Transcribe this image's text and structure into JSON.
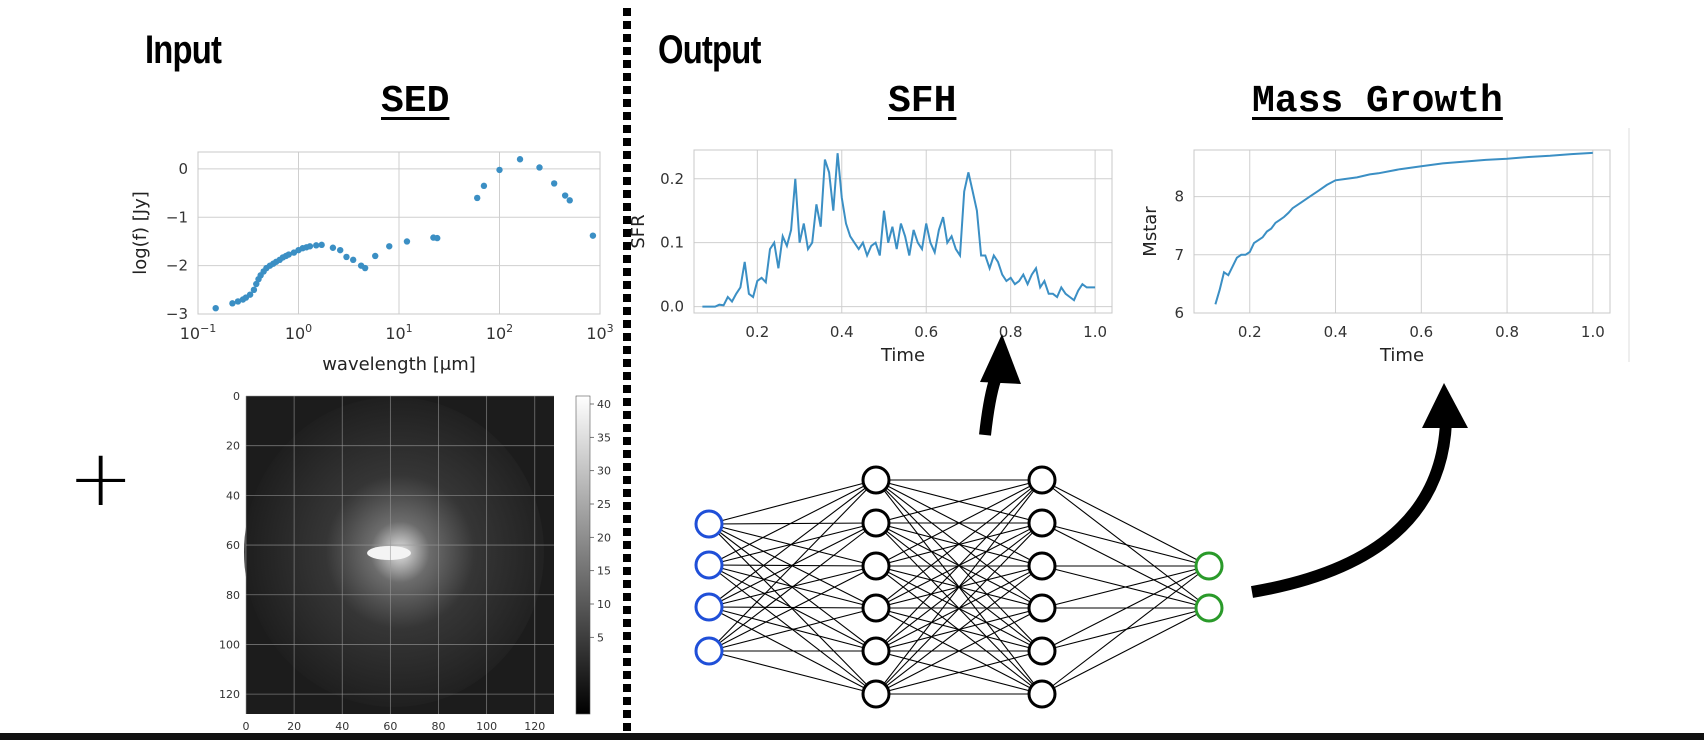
{
  "sections": {
    "input": "Input",
    "output": "Output"
  },
  "plus_symbol": "+",
  "colors": {
    "line": "#3b8fc4",
    "grid": "#cfcfcf",
    "input_node": "#1f4fd8",
    "output_node": "#2a9a2a",
    "node": "#000000"
  },
  "sed": {
    "title": "SED",
    "chart_data": {
      "type": "scatter",
      "xlabel": "wavelength [μm]",
      "ylabel": "log(f) [Jy]",
      "xscale": "log",
      "xlim": [
        0.1,
        1000
      ],
      "ylim": [
        -3,
        0.35
      ],
      "xticks": [
        {
          "v": 0.1,
          "b": "10",
          "e": "−1"
        },
        {
          "v": 1,
          "b": "10",
          "e": "0"
        },
        {
          "v": 10,
          "b": "10",
          "e": "1"
        },
        {
          "v": 100,
          "b": "10",
          "e": "2"
        },
        {
          "v": 1000,
          "b": "10",
          "e": "3"
        }
      ],
      "yticks": [
        {
          "v": 0,
          "l": "0"
        },
        {
          "v": -1,
          "l": "−1"
        },
        {
          "v": -2,
          "l": "−2"
        },
        {
          "v": -3,
          "l": "−3"
        }
      ],
      "grid": true,
      "points": [
        [
          0.15,
          -2.88
        ],
        [
          0.22,
          -2.78
        ],
        [
          0.25,
          -2.74
        ],
        [
          0.28,
          -2.7
        ],
        [
          0.3,
          -2.66
        ],
        [
          0.33,
          -2.6
        ],
        [
          0.36,
          -2.5
        ],
        [
          0.38,
          -2.38
        ],
        [
          0.4,
          -2.28
        ],
        [
          0.42,
          -2.2
        ],
        [
          0.45,
          -2.12
        ],
        [
          0.48,
          -2.05
        ],
        [
          0.52,
          -2.0
        ],
        [
          0.56,
          -1.96
        ],
        [
          0.6,
          -1.92
        ],
        [
          0.65,
          -1.88
        ],
        [
          0.7,
          -1.83
        ],
        [
          0.75,
          -1.8
        ],
        [
          0.8,
          -1.77
        ],
        [
          0.9,
          -1.73
        ],
        [
          1.0,
          -1.68
        ],
        [
          1.1,
          -1.64
        ],
        [
          1.2,
          -1.62
        ],
        [
          1.3,
          -1.6
        ],
        [
          1.5,
          -1.58
        ],
        [
          1.7,
          -1.57
        ],
        [
          2.2,
          -1.63
        ],
        [
          2.6,
          -1.68
        ],
        [
          3.0,
          -1.82
        ],
        [
          3.5,
          -1.88
        ],
        [
          4.2,
          -2.0
        ],
        [
          4.6,
          -2.05
        ],
        [
          5.8,
          -1.8
        ],
        [
          8.0,
          -1.6
        ],
        [
          12.0,
          -1.5
        ],
        [
          22.0,
          -1.42
        ],
        [
          24.0,
          -1.43
        ],
        [
          60.0,
          -0.6
        ],
        [
          70.0,
          -0.35
        ],
        [
          100.0,
          -0.02
        ],
        [
          160.0,
          0.2
        ],
        [
          250.0,
          0.03
        ],
        [
          350.0,
          -0.3
        ],
        [
          450.0,
          -0.55
        ],
        [
          500.0,
          -0.65
        ],
        [
          850.0,
          -1.38
        ]
      ]
    }
  },
  "sfh": {
    "title": "SFH",
    "chart_data": {
      "type": "line",
      "xlabel": "Time",
      "ylabel": "SFR",
      "xlim": [
        0.05,
        1.04
      ],
      "ylim": [
        -0.01,
        0.245
      ],
      "xticks": [
        {
          "v": 0.2,
          "l": "0.2"
        },
        {
          "v": 0.4,
          "l": "0.4"
        },
        {
          "v": 0.6,
          "l": "0.6"
        },
        {
          "v": 0.8,
          "l": "0.8"
        },
        {
          "v": 1.0,
          "l": "1.0"
        }
      ],
      "yticks": [
        {
          "v": 0.0,
          "l": "0.0"
        },
        {
          "v": 0.1,
          "l": "0.1"
        },
        {
          "v": 0.2,
          "l": "0.2"
        }
      ],
      "grid": true,
      "x": [
        0.07,
        0.09,
        0.1,
        0.11,
        0.12,
        0.13,
        0.14,
        0.15,
        0.16,
        0.17,
        0.18,
        0.19,
        0.2,
        0.21,
        0.22,
        0.23,
        0.24,
        0.25,
        0.26,
        0.27,
        0.28,
        0.29,
        0.3,
        0.31,
        0.32,
        0.33,
        0.34,
        0.35,
        0.36,
        0.37,
        0.38,
        0.39,
        0.4,
        0.41,
        0.42,
        0.43,
        0.44,
        0.45,
        0.46,
        0.47,
        0.48,
        0.49,
        0.5,
        0.51,
        0.52,
        0.53,
        0.54,
        0.55,
        0.56,
        0.57,
        0.58,
        0.59,
        0.6,
        0.61,
        0.62,
        0.63,
        0.64,
        0.65,
        0.66,
        0.67,
        0.68,
        0.69,
        0.7,
        0.71,
        0.72,
        0.73,
        0.74,
        0.75,
        0.76,
        0.77,
        0.78,
        0.79,
        0.8,
        0.81,
        0.82,
        0.83,
        0.84,
        0.85,
        0.86,
        0.87,
        0.88,
        0.89,
        0.9,
        0.91,
        0.92,
        0.93,
        0.94,
        0.95,
        0.96,
        0.97,
        0.98,
        0.99,
        1.0
      ],
      "y": [
        0.0,
        0.0,
        0.0,
        0.003,
        0.002,
        0.015,
        0.008,
        0.02,
        0.03,
        0.07,
        0.02,
        0.015,
        0.04,
        0.045,
        0.038,
        0.09,
        0.1,
        0.06,
        0.11,
        0.095,
        0.12,
        0.2,
        0.1,
        0.13,
        0.09,
        0.1,
        0.16,
        0.125,
        0.23,
        0.21,
        0.15,
        0.24,
        0.17,
        0.13,
        0.11,
        0.1,
        0.09,
        0.1,
        0.08,
        0.095,
        0.1,
        0.08,
        0.15,
        0.1,
        0.125,
        0.09,
        0.13,
        0.11,
        0.08,
        0.12,
        0.1,
        0.09,
        0.13,
        0.1,
        0.085,
        0.12,
        0.14,
        0.1,
        0.11,
        0.09,
        0.08,
        0.18,
        0.21,
        0.18,
        0.15,
        0.08,
        0.08,
        0.06,
        0.08,
        0.07,
        0.05,
        0.04,
        0.045,
        0.035,
        0.04,
        0.05,
        0.035,
        0.05,
        0.06,
        0.03,
        0.04,
        0.02,
        0.02,
        0.015,
        0.03,
        0.02,
        0.015,
        0.01,
        0.025,
        0.035,
        0.03,
        0.03,
        0.03
      ]
    }
  },
  "mass": {
    "title": "Mass Growth",
    "chart_data": {
      "type": "line",
      "xlabel": "Time",
      "ylabel": "Mstar",
      "xlim": [
        0.07,
        1.04
      ],
      "ylim": [
        6.0,
        8.8
      ],
      "xticks": [
        {
          "v": 0.2,
          "l": "0.2"
        },
        {
          "v": 0.4,
          "l": "0.4"
        },
        {
          "v": 0.6,
          "l": "0.6"
        },
        {
          "v": 0.8,
          "l": "0.8"
        },
        {
          "v": 1.0,
          "l": "1.0"
        }
      ],
      "yticks": [
        {
          "v": 6,
          "l": "6"
        },
        {
          "v": 7,
          "l": "7"
        },
        {
          "v": 8,
          "l": "8"
        }
      ],
      "grid": true,
      "x": [
        0.12,
        0.13,
        0.14,
        0.15,
        0.16,
        0.17,
        0.18,
        0.19,
        0.2,
        0.21,
        0.22,
        0.23,
        0.24,
        0.25,
        0.26,
        0.27,
        0.28,
        0.29,
        0.3,
        0.32,
        0.34,
        0.36,
        0.38,
        0.4,
        0.42,
        0.45,
        0.48,
        0.5,
        0.55,
        0.6,
        0.65,
        0.7,
        0.75,
        0.8,
        0.85,
        0.9,
        0.95,
        1.0
      ],
      "y": [
        6.15,
        6.4,
        6.7,
        6.65,
        6.8,
        6.95,
        7.0,
        7.0,
        7.05,
        7.2,
        7.25,
        7.3,
        7.4,
        7.45,
        7.55,
        7.6,
        7.65,
        7.72,
        7.8,
        7.9,
        8.0,
        8.1,
        8.2,
        8.28,
        8.3,
        8.33,
        8.38,
        8.4,
        8.47,
        8.52,
        8.57,
        8.6,
        8.63,
        8.65,
        8.68,
        8.7,
        8.73,
        8.75
      ]
    }
  },
  "image": {
    "xlim": [
      0,
      128
    ],
    "ylim": [
      0,
      128
    ],
    "xticks": [
      "0",
      "20",
      "40",
      "60",
      "80",
      "100",
      "120"
    ],
    "yticks": [
      "0",
      "20",
      "40",
      "60",
      "80",
      "100",
      "120"
    ],
    "colorbar_ticks": [
      "40",
      "35",
      "30",
      "25",
      "20",
      "15",
      "10",
      "5"
    ]
  },
  "network": {
    "layers": [
      4,
      6,
      6,
      2
    ]
  }
}
